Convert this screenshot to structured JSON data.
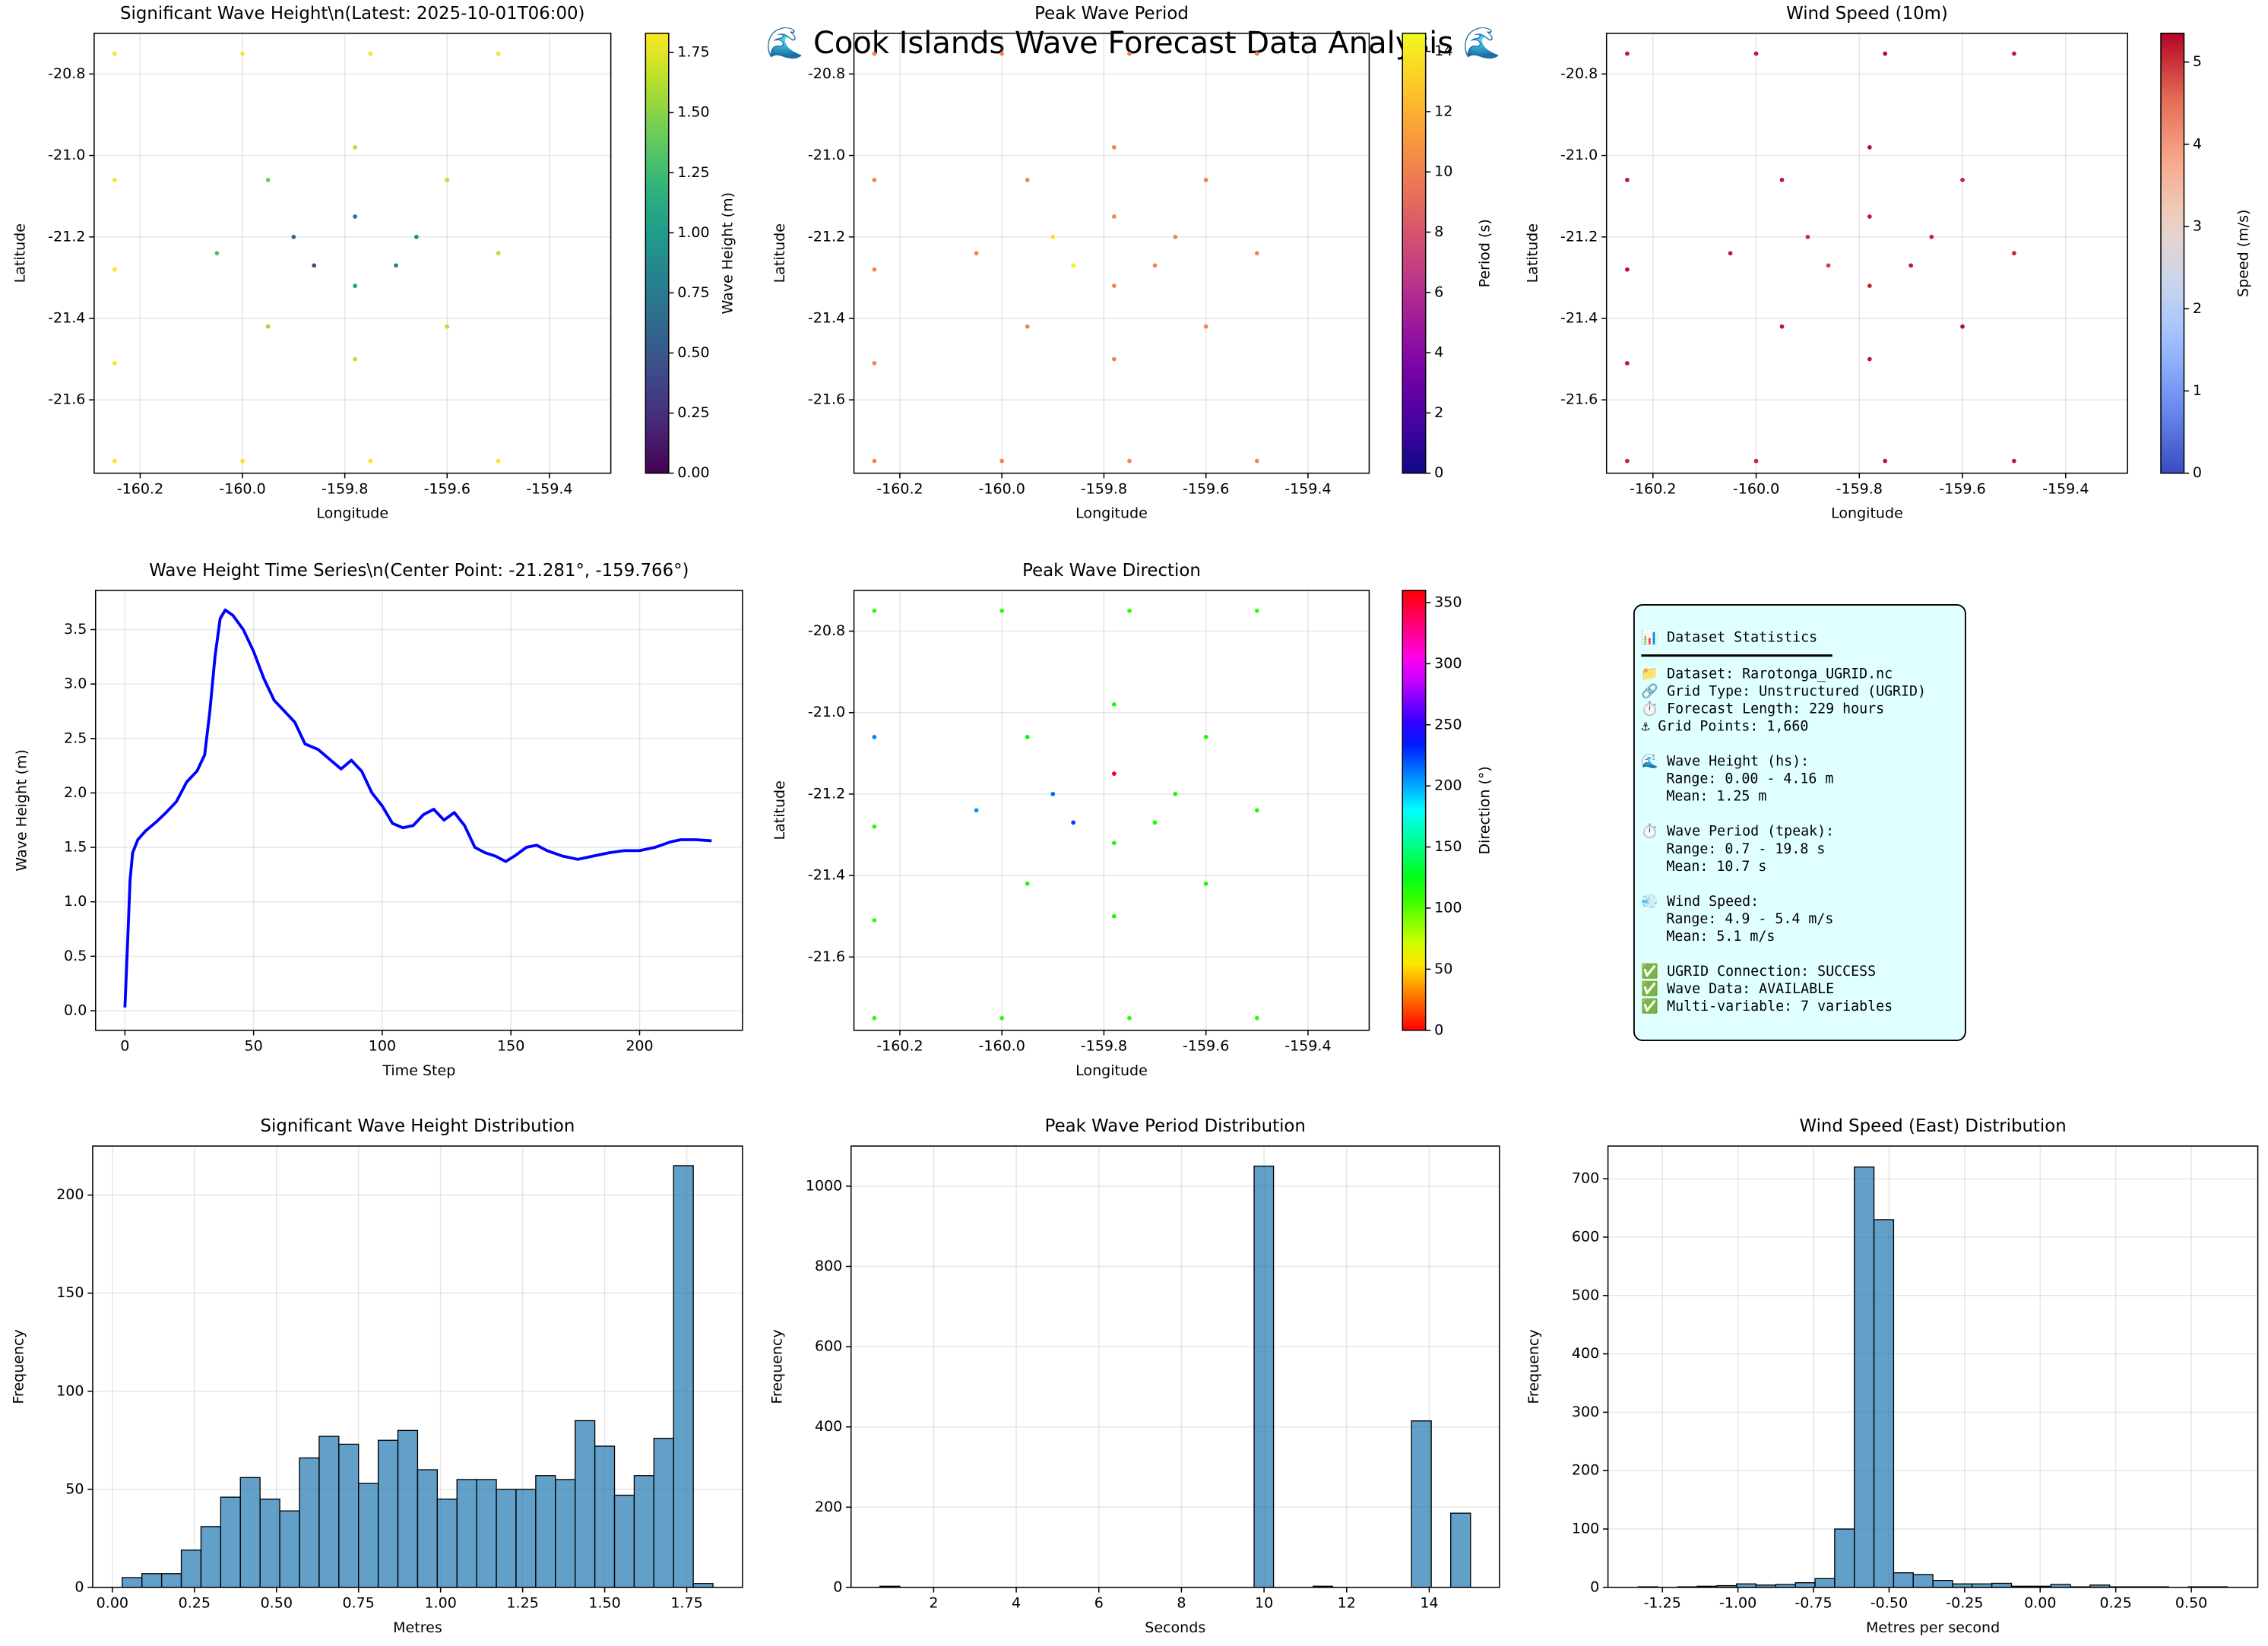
{
  "title": "🌊 Cook Islands Wave Forecast Data Analysis 🌊",
  "chart_data": [
    {
      "type": "scatter",
      "title": "Significant Wave Height\\n(Latest: 2025-10-01T06:00)",
      "x_label": "Longitude",
      "y_label": "Latitude",
      "x": [
        -160.25,
        -160.25,
        -160.25,
        -160.25,
        -160.25,
        -159.25,
        -159.25,
        -159.25,
        -159.25,
        -159.25,
        -160.0,
        -159.75,
        -159.5,
        -160.0,
        -159.75,
        -159.5,
        -160.05,
        -159.5,
        -159.78,
        -159.78,
        -159.95,
        -159.6,
        -159.95,
        -159.6,
        -159.9,
        -159.66,
        -159.78,
        -159.78,
        -159.86,
        -159.7
      ],
      "y": [
        -20.75,
        -21.06,
        -21.28,
        -21.51,
        -21.75,
        -20.75,
        -21.06,
        -21.28,
        -21.51,
        -21.75,
        -20.75,
        -20.75,
        -20.75,
        -21.75,
        -21.75,
        -21.75,
        -21.24,
        -21.24,
        -20.98,
        -21.5,
        -21.06,
        -21.06,
        -21.42,
        -21.42,
        -21.2,
        -21.2,
        -21.15,
        -21.32,
        -21.27,
        -21.27
      ],
      "values": [
        1.8,
        1.8,
        1.8,
        1.8,
        1.8,
        1.8,
        1.8,
        1.8,
        1.8,
        1.8,
        1.8,
        1.8,
        1.8,
        1.8,
        1.8,
        1.8,
        1.3,
        1.65,
        1.65,
        1.65,
        1.4,
        1.65,
        1.55,
        1.65,
        0.6,
        0.9,
        0.7,
        1.0,
        0.4,
        0.8
      ],
      "cmap": "viridis",
      "clim": [
        0,
        1.83
      ],
      "cbar_label": "Wave Height (m)",
      "cticks": [
        {
          "value": 0,
          "label": "0.00"
        },
        0.25,
        {
          "value": 0.5,
          "label": "0.50"
        },
        0.75,
        {
          "value": 1,
          "label": "1.00"
        },
        1.25,
        {
          "value": 1.5,
          "label": "1.50"
        },
        1.75
      ],
      "xlim": [
        -160.29,
        -159.28
      ],
      "ylim": [
        -21.78,
        -20.7
      ],
      "xticks": [
        -160.2,
        {
          "value": -160.0,
          "label": "-160.0"
        },
        -159.8,
        -159.6,
        -159.4
      ],
      "yticks": [
        -21.6,
        -21.4,
        -21.2,
        {
          "value": -21.0,
          "label": "-21.0"
        },
        -20.8
      ],
      "grid": true
    },
    {
      "type": "scatter",
      "title": "Peak Wave Period",
      "x_label": "Longitude",
      "y_label": "Latitude",
      "x": [
        -160.25,
        -160.25,
        -160.25,
        -160.25,
        -160.25,
        -159.25,
        -159.25,
        -159.25,
        -159.25,
        -159.25,
        -160.0,
        -159.75,
        -159.5,
        -160.0,
        -159.75,
        -159.5,
        -160.05,
        -159.5,
        -159.78,
        -159.78,
        -159.95,
        -159.6,
        -159.95,
        -159.6,
        -159.9,
        -159.66,
        -159.78,
        -159.78,
        -159.86,
        -159.7
      ],
      "y": [
        -20.75,
        -21.06,
        -21.28,
        -21.51,
        -21.75,
        -20.75,
        -21.06,
        -21.28,
        -21.51,
        -21.75,
        -20.75,
        -20.75,
        -20.75,
        -21.75,
        -21.75,
        -21.75,
        -21.24,
        -21.24,
        -20.98,
        -21.5,
        -21.06,
        -21.06,
        -21.42,
        -21.42,
        -21.2,
        -21.2,
        -21.15,
        -21.32,
        -21.27,
        -21.27
      ],
      "values": [
        10.2,
        10.2,
        10.2,
        10.2,
        10.2,
        10.2,
        10.2,
        10.2,
        10.2,
        10.2,
        10.2,
        10.2,
        10.2,
        10.2,
        10.2,
        10.2,
        10.2,
        10.2,
        10.2,
        10.2,
        10.2,
        10.2,
        10.2,
        10.2,
        13.8,
        10.2,
        10.5,
        10.2,
        14.2,
        10.2
      ],
      "cmap": "plasma",
      "clim": [
        0,
        14.6
      ],
      "cbar_label": "Period (s)",
      "cticks": [
        0,
        2,
        4,
        6,
        8,
        10,
        12,
        14
      ],
      "xlim": [
        -160.29,
        -159.28
      ],
      "ylim": [
        -21.78,
        -20.7
      ],
      "xticks": [
        -160.2,
        {
          "value": -160.0,
          "label": "-160.0"
        },
        -159.8,
        -159.6,
        -159.4
      ],
      "yticks": [
        -21.6,
        -21.4,
        -21.2,
        {
          "value": -21.0,
          "label": "-21.0"
        },
        -20.8
      ],
      "grid": true
    },
    {
      "type": "scatter",
      "title": "Wind Speed (10m)",
      "x_label": "Longitude",
      "y_label": "Latitude",
      "x": [
        -160.25,
        -160.25,
        -160.25,
        -160.25,
        -160.25,
        -159.25,
        -159.25,
        -159.25,
        -159.25,
        -159.25,
        -160.0,
        -159.75,
        -159.5,
        -160.0,
        -159.75,
        -159.5,
        -160.05,
        -159.5,
        -159.78,
        -159.78,
        -159.95,
        -159.6,
        -159.95,
        -159.6,
        -159.9,
        -159.66,
        -159.78,
        -159.78,
        -159.86,
        -159.7
      ],
      "y": [
        -20.75,
        -21.06,
        -21.28,
        -21.51,
        -21.75,
        -20.75,
        -21.06,
        -21.28,
        -21.51,
        -21.75,
        -20.75,
        -20.75,
        -20.75,
        -21.75,
        -21.75,
        -21.75,
        -21.24,
        -21.24,
        -20.98,
        -21.5,
        -21.06,
        -21.06,
        -21.42,
        -21.42,
        -21.2,
        -21.2,
        -21.15,
        -21.32,
        -21.27,
        -21.27
      ],
      "values": [
        5.2,
        5.2,
        5.3,
        5.2,
        5.1,
        5.3,
        5.2,
        5.2,
        5.1,
        5.2,
        5.2,
        5.3,
        5.2,
        5.1,
        5.2,
        5.2,
        5.2,
        5.1,
        5.3,
        5.2,
        5.2,
        5.1,
        5.2,
        5.3,
        5.0,
        5.1,
        5.2,
        5.1,
        4.9,
        5.2
      ],
      "cmap": "coolwarm",
      "clim": [
        0,
        5.35
      ],
      "cbar_label": "Speed (m/s)",
      "cticks": [
        0,
        1,
        2,
        3,
        4,
        5
      ],
      "xlim": [
        -160.29,
        -159.28
      ],
      "ylim": [
        -21.78,
        -20.7
      ],
      "xticks": [
        -160.2,
        {
          "value": -160.0,
          "label": "-160.0"
        },
        -159.8,
        -159.6,
        -159.4
      ],
      "yticks": [
        -21.6,
        -21.4,
        -21.2,
        {
          "value": -21.0,
          "label": "-21.0"
        },
        -20.8
      ],
      "grid": true
    },
    {
      "type": "line",
      "title": "Wave Height Time Series\\n(Center Point: -21.281°, -159.766°)",
      "x_label": "Time Step",
      "y_label": "Wave Height (m)",
      "x": [
        0,
        1,
        2,
        3,
        5,
        8,
        12,
        16,
        20,
        24,
        28,
        31,
        33,
        35,
        37,
        39,
        42,
        46,
        50,
        54,
        58,
        62,
        66,
        70,
        75,
        80,
        84,
        88,
        92,
        96,
        100,
        104,
        108,
        112,
        116,
        120,
        124,
        128,
        132,
        136,
        140,
        144,
        148,
        152,
        156,
        160,
        164,
        170,
        176,
        182,
        188,
        194,
        200,
        206,
        212,
        216,
        222,
        228
      ],
      "series": [
        {
          "color": "#0000ff",
          "values": [
            0.03,
            0.6,
            1.2,
            1.45,
            1.57,
            1.65,
            1.73,
            1.82,
            1.92,
            2.1,
            2.2,
            2.35,
            2.75,
            3.25,
            3.6,
            3.68,
            3.63,
            3.5,
            3.3,
            3.05,
            2.85,
            2.75,
            2.65,
            2.45,
            2.4,
            2.3,
            2.22,
            2.3,
            2.2,
            2.0,
            1.88,
            1.72,
            1.68,
            1.7,
            1.8,
            1.85,
            1.75,
            1.82,
            1.7,
            1.5,
            1.45,
            1.42,
            1.37,
            1.43,
            1.5,
            1.52,
            1.47,
            1.42,
            1.39,
            1.42,
            1.45,
            1.47,
            1.47,
            1.5,
            1.55,
            1.57,
            1.57,
            1.56
          ]
        }
      ],
      "xlim": [
        -11.4,
        240
      ],
      "ylim": [
        -0.18,
        3.86
      ],
      "xticks": [
        0,
        50,
        100,
        150,
        200
      ],
      "yticks": [
        {
          "value": 0,
          "label": "0.0"
        },
        0.5,
        {
          "value": 1,
          "label": "1.0"
        },
        1.5,
        {
          "value": 2,
          "label": "2.0"
        },
        2.5,
        {
          "value": 3,
          "label": "3.0"
        },
        3.5
      ],
      "grid": true
    },
    {
      "type": "scatter",
      "title": "Peak Wave Direction",
      "x_label": "Longitude",
      "y_label": "Latitude",
      "x": [
        -160.25,
        -160.25,
        -160.25,
        -160.25,
        -160.25,
        -159.25,
        -159.25,
        -159.25,
        -159.25,
        -159.25,
        -160.0,
        -159.75,
        -159.5,
        -160.0,
        -159.75,
        -159.5,
        -160.05,
        -159.5,
        -159.78,
        -159.78,
        -159.95,
        -159.6,
        -159.95,
        -159.6,
        -159.9,
        -159.66,
        -159.78,
        -159.78,
        -159.86,
        -159.7
      ],
      "y": [
        -20.75,
        -21.06,
        -21.28,
        -21.51,
        -21.75,
        -20.75,
        -21.06,
        -21.28,
        -21.51,
        -21.75,
        -20.75,
        -20.75,
        -20.75,
        -21.75,
        -21.75,
        -21.75,
        -21.24,
        -21.24,
        -20.98,
        -21.5,
        -21.06,
        -21.06,
        -21.42,
        -21.42,
        -21.2,
        -21.2,
        -21.15,
        -21.32,
        -21.27,
        -21.27
      ],
      "values": [
        110,
        210,
        110,
        110,
        110,
        110,
        110,
        110,
        110,
        110,
        110,
        110,
        110,
        110,
        110,
        110,
        205,
        115,
        115,
        115,
        120,
        115,
        115,
        115,
        215,
        115,
        355,
        115,
        225,
        115
      ],
      "cmap": "hsv",
      "clim": [
        0,
        360
      ],
      "cbar_label": "Direction (°)",
      "cticks": [
        0,
        50,
        100,
        150,
        200,
        250,
        300,
        350
      ],
      "xlim": [
        -160.29,
        -159.28
      ],
      "ylim": [
        -21.78,
        -20.7
      ],
      "xticks": [
        -160.2,
        {
          "value": -160.0,
          "label": "-160.0"
        },
        -159.8,
        -159.6,
        -159.4
      ],
      "yticks": [
        -21.6,
        -21.4,
        -21.2,
        {
          "value": -21.0,
          "label": "-21.0"
        },
        -20.8
      ],
      "grid": true
    },
    {
      "type": "histogram",
      "title": "Significant Wave Height Distribution",
      "x_label": "Metres",
      "y_label": "Frequency",
      "color": "#1f77b4",
      "bins": [
        0.03,
        0.09,
        0.15,
        0.21,
        0.27,
        0.33,
        0.39,
        0.45,
        0.51,
        0.57,
        0.63,
        0.69,
        0.75,
        0.81,
        0.87,
        0.93,
        0.99,
        1.05,
        1.11,
        1.17,
        1.23,
        1.29,
        1.35,
        1.41,
        1.47,
        1.53,
        1.59,
        1.65,
        1.71,
        1.77,
        1.83
      ],
      "values": [
        5,
        7,
        7,
        19,
        31,
        46,
        56,
        45,
        39,
        66,
        77,
        73,
        53,
        75,
        80,
        60,
        45,
        55,
        55,
        50,
        50,
        57,
        55,
        85,
        72,
        47,
        57,
        76,
        215,
        2
      ],
      "xlim": [
        -0.06,
        1.92
      ],
      "ylim": [
        0,
        225
      ],
      "xticks": [
        {
          "value": 0,
          "label": "0.00"
        },
        0.25,
        {
          "value": 0.5,
          "label": "0.50"
        },
        0.75,
        {
          "value": 1,
          "label": "1.00"
        },
        1.25,
        {
          "value": 1.5,
          "label": "1.50"
        },
        1.75
      ],
      "yticks": [
        0,
        50,
        100,
        150,
        200
      ],
      "grid": true
    },
    {
      "type": "histogram",
      "title": "Peak Wave Period Distribution",
      "x_label": "Seconds",
      "y_label": "Frequency",
      "color": "#1f77b4",
      "bins": [
        0.7,
        1.18,
        1.65,
        2.13,
        2.61,
        3.08,
        3.56,
        4.04,
        4.51,
        4.99,
        5.47,
        5.94,
        6.42,
        6.9,
        7.37,
        7.85,
        8.33,
        8.8,
        9.28,
        9.76,
        10.23,
        10.71,
        11.19,
        11.66,
        12.14,
        12.62,
        13.09,
        13.57,
        14.05,
        14.52,
        15.0
      ],
      "values": [
        3,
        0,
        0,
        0,
        0,
        0,
        0,
        0,
        0,
        0,
        0,
        0,
        0,
        0,
        0,
        0,
        0,
        0,
        0,
        1050,
        0,
        0,
        3,
        0,
        0,
        0,
        0,
        415,
        0,
        185
      ],
      "xlim": [
        0,
        15.7
      ],
      "ylim": [
        0,
        1100
      ],
      "xticks": [
        2,
        4,
        6,
        8,
        10,
        12,
        14
      ],
      "yticks": [
        0,
        200,
        400,
        600,
        800,
        1000
      ],
      "grid": true
    },
    {
      "type": "histogram",
      "title": "Wind Speed (East) Distribution",
      "x_label": "Metres per second",
      "y_label": "Frequency",
      "color": "#1f77b4",
      "bins": [
        -1.33,
        -1.265,
        -1.2,
        -1.135,
        -1.07,
        -1.005,
        -0.94,
        -0.875,
        -0.81,
        -0.745,
        -0.68,
        -0.615,
        -0.55,
        -0.485,
        -0.42,
        -0.355,
        -0.29,
        -0.225,
        -0.16,
        -0.095,
        -0.03,
        0.035,
        0.1,
        0.165,
        0.23,
        0.295,
        0.36,
        0.425,
        0.49,
        0.555,
        0.62
      ],
      "values": [
        1,
        0,
        1,
        2,
        3,
        6,
        4,
        5,
        8,
        15,
        100,
        720,
        630,
        25,
        22,
        12,
        6,
        6,
        7,
        2,
        2,
        5,
        1,
        4,
        1,
        1,
        1,
        0,
        1,
        1
      ],
      "xlim": [
        -1.43,
        0.72
      ],
      "ylim": [
        0,
        756
      ],
      "xticks": [
        -1.25,
        {
          "value": -1,
          "label": "-1.00"
        },
        -0.75,
        {
          "value": -0.5,
          "label": "-0.50"
        },
        -0.25,
        {
          "value": 0,
          "label": "0.00"
        },
        0.25,
        {
          "value": 0.5,
          "label": "0.50"
        }
      ],
      "yticks": [
        0,
        100,
        200,
        300,
        400,
        500,
        600,
        700
      ],
      "grid": true
    }
  ],
  "stats": {
    "title": "📊 Dataset Statistics",
    "blocks": [
      [
        "📁 Dataset: Rarotonga_UGRID.nc",
        "🔗 Grid Type: Unstructured (UGRID)",
        "⏱️ Forecast Length: 229 hours",
        "⚓ Grid Points: 1,660"
      ],
      [
        "🌊 Wave Height (hs):",
        "   Range: 0.00 - 4.16 m",
        "   Mean: 1.25 m"
      ],
      [
        "⏱️ Wave Period (tpeak):",
        "   Range: 0.7 - 19.8 s",
        "   Mean: 10.7 s"
      ],
      [
        "💨 Wind Speed:",
        "   Range: 4.9 - 5.4 m/s",
        "   Mean: 5.1 m/s"
      ],
      [
        "✅ UGRID Connection: SUCCESS",
        "✅ Wave Data: AVAILABLE",
        "✅ Multi-variable: 7 variables"
      ]
    ]
  }
}
